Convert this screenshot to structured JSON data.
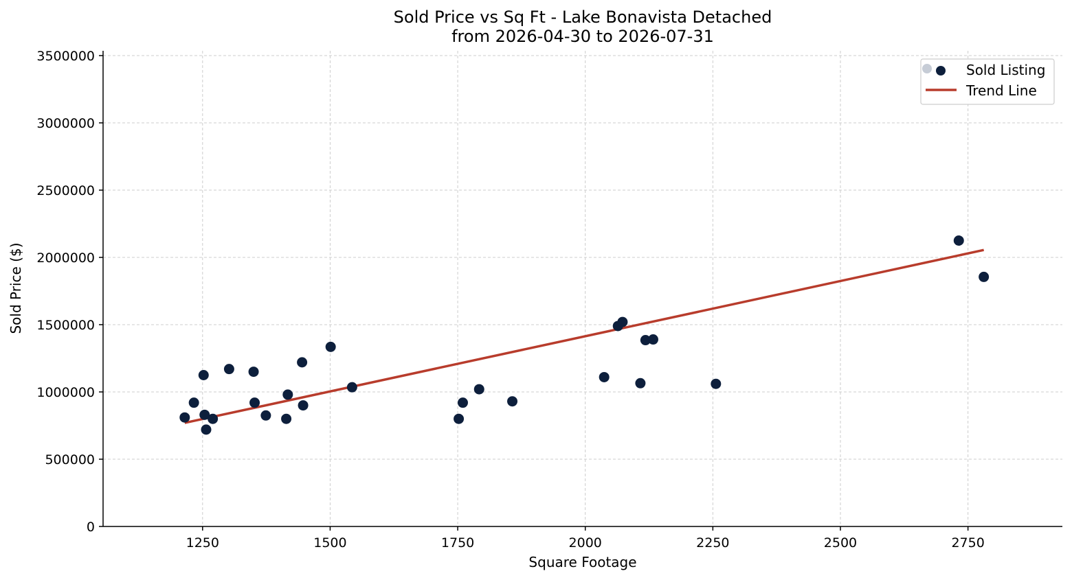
{
  "chart_data": {
    "type": "scatter",
    "title": "Sold Price vs Sq Ft - Lake Bonavista Detached",
    "subtitle": "from 2026-04-30 to 2026-07-31",
    "xlabel": "Square Footage",
    "ylabel": "Sold Price ($)",
    "xlim": [
      1055,
      2935
    ],
    "ylim": [
      0,
      3550000
    ],
    "xticks": [
      1250,
      1500,
      1750,
      2000,
      2250,
      2500,
      2750
    ],
    "yticks": [
      0,
      500000,
      1000000,
      1500000,
      2000000,
      2500000,
      3000000,
      3500000
    ],
    "xtick_labels": [
      "1250",
      "1500",
      "1750",
      "2000",
      "2250",
      "2500",
      "2750"
    ],
    "ytick_labels": [
      "0",
      "500000",
      "1000000",
      "1500000",
      "2000000",
      "2500000",
      "3000000",
      "3500000"
    ],
    "grid": true,
    "legend_position": "top-right",
    "series": [
      {
        "name": "Sold Listing",
        "kind": "scatter",
        "color": "#0d1f3c",
        "points": [
          {
            "x": 1215,
            "y": 810000
          },
          {
            "x": 1233,
            "y": 920000
          },
          {
            "x": 1252,
            "y": 1125000
          },
          {
            "x": 1254,
            "y": 830000
          },
          {
            "x": 1257,
            "y": 720000
          },
          {
            "x": 1270,
            "y": 800000
          },
          {
            "x": 1302,
            "y": 1170000
          },
          {
            "x": 1350,
            "y": 1150000
          },
          {
            "x": 1352,
            "y": 920000
          },
          {
            "x": 1374,
            "y": 825000
          },
          {
            "x": 1414,
            "y": 800000
          },
          {
            "x": 1417,
            "y": 980000
          },
          {
            "x": 1445,
            "y": 1220000
          },
          {
            "x": 1447,
            "y": 900000
          },
          {
            "x": 1501,
            "y": 1335000
          },
          {
            "x": 1543,
            "y": 1035000
          },
          {
            "x": 1752,
            "y": 800000
          },
          {
            "x": 1760,
            "y": 920000
          },
          {
            "x": 1792,
            "y": 1020000
          },
          {
            "x": 1857,
            "y": 930000
          },
          {
            "x": 2037,
            "y": 1110000
          },
          {
            "x": 2064,
            "y": 1490000
          },
          {
            "x": 2073,
            "y": 1520000
          },
          {
            "x": 2108,
            "y": 1065000
          },
          {
            "x": 2118,
            "y": 1385000
          },
          {
            "x": 2133,
            "y": 1390000
          },
          {
            "x": 2256,
            "y": 1060000
          },
          {
            "x": 2732,
            "y": 2125000
          },
          {
            "x": 2781,
            "y": 1855000
          }
        ]
      },
      {
        "name": "Trend Line",
        "kind": "line",
        "color": "#b83c2c",
        "points": [
          {
            "x": 1215,
            "y": 770000
          },
          {
            "x": 2781,
            "y": 2055000
          }
        ]
      }
    ],
    "legend": [
      {
        "label": "Sold Listing",
        "marker": "scatter",
        "color": "#0d1f3c",
        "ghost_color": "#c6ccd6"
      },
      {
        "label": "Trend Line",
        "marker": "line",
        "color": "#b83c2c"
      }
    ]
  }
}
